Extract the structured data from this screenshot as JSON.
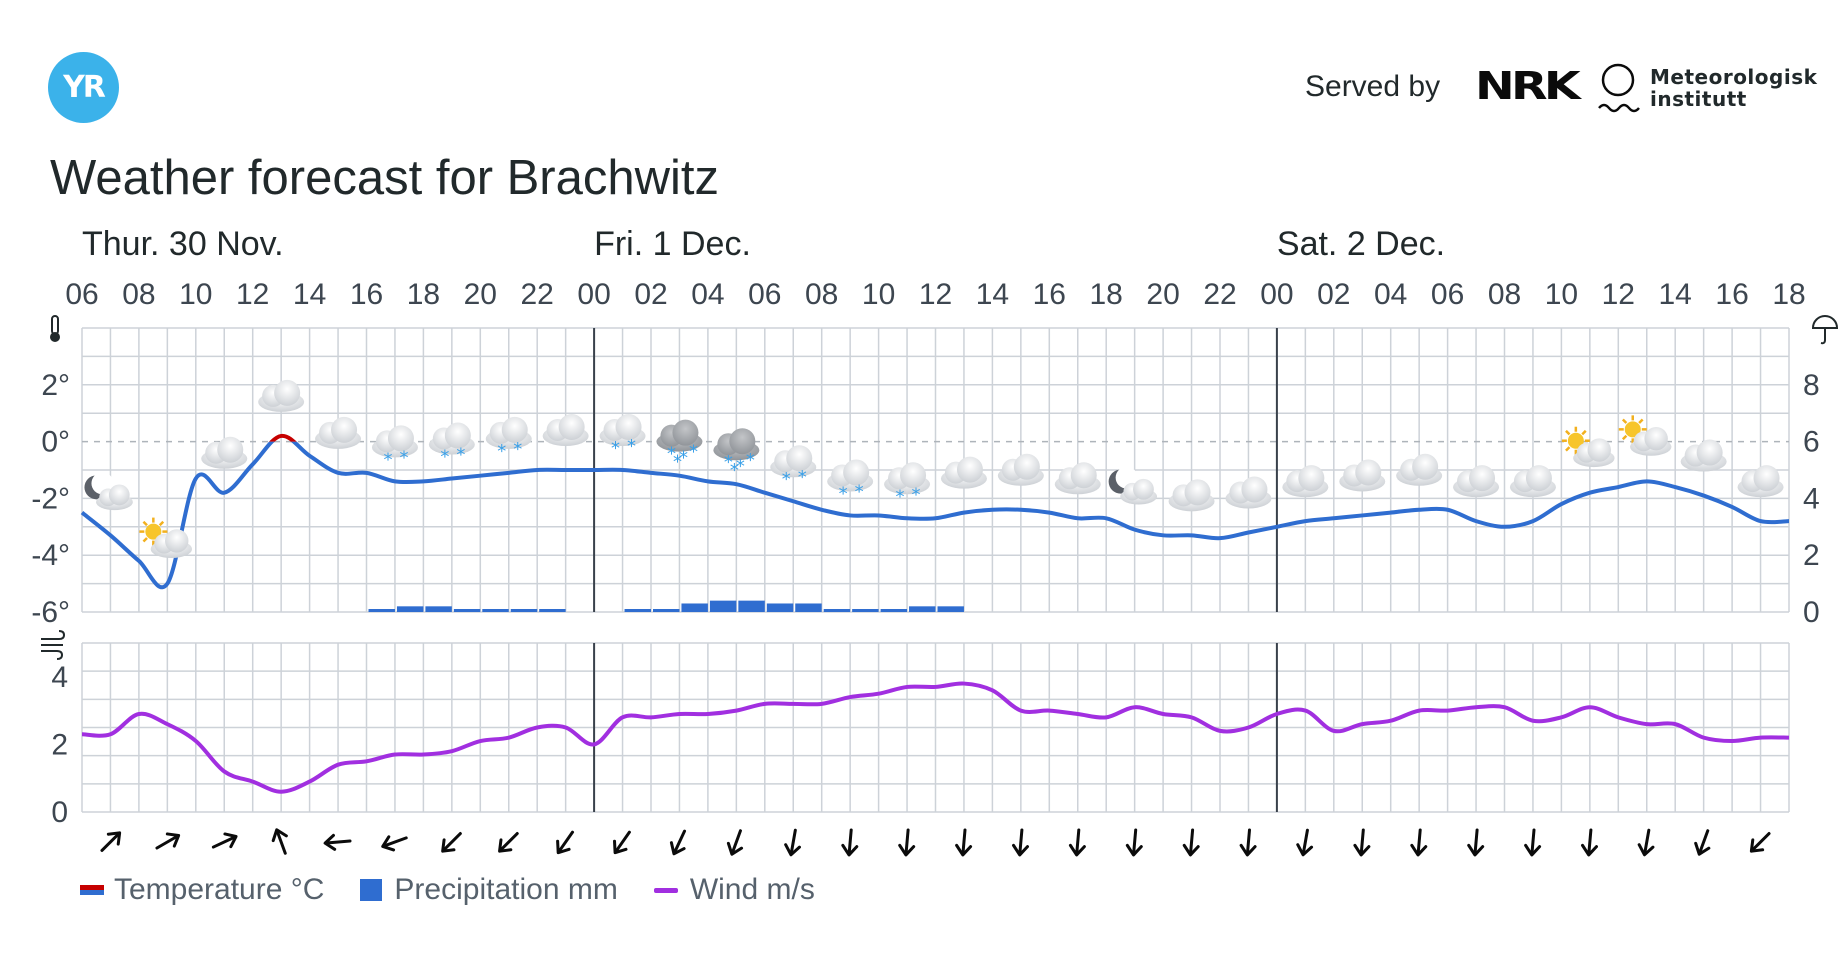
{
  "header": {
    "logo_text": "YR",
    "served_by": "Served by",
    "nrk_text": "NRK",
    "met_line1": "Meteorologisk",
    "met_line2": "institutt",
    "title": "Weather forecast for Brachwitz"
  },
  "legend": {
    "temperature": "Temperature °C",
    "precipitation": "Precipitation mm",
    "wind": "Wind m/s"
  },
  "colors": {
    "temperature_warm": "#c60000",
    "temperature_cold": "#2f6dd0",
    "precipitation": "#2f6dd0",
    "wind": "#a12fe0",
    "grid": "#cdd2d8",
    "day_separator": "#39414b",
    "logo": "#3bb2ea"
  },
  "chart_data": [
    {
      "type": "line",
      "name": "temperature-precipitation",
      "days": [
        {
          "label": "Thur. 30 Nov.",
          "start_hour_index": 0
        },
        {
          "label": "Fri. 1 Dec.",
          "start_hour_index": 18
        },
        {
          "label": "Sat. 2 Dec.",
          "start_hour_index": 42
        }
      ],
      "x_tick_labels": [
        "06",
        "08",
        "10",
        "12",
        "14",
        "16",
        "18",
        "20",
        "22",
        "00",
        "02",
        "04",
        "06",
        "08",
        "10",
        "12",
        "14",
        "16",
        "18",
        "20",
        "22",
        "00",
        "02",
        "04",
        "06",
        "08",
        "10",
        "12",
        "14",
        "16",
        "18"
      ],
      "x_hours_from_start": [
        0,
        1,
        2,
        3,
        4,
        5,
        6,
        7,
        8,
        9,
        10,
        11,
        12,
        13,
        14,
        15,
        16,
        17,
        18,
        19,
        20,
        21,
        22,
        23,
        24,
        25,
        26,
        27,
        28,
        29,
        30,
        31,
        32,
        33,
        34,
        35,
        36,
        37,
        38,
        39,
        40,
        41,
        42,
        43,
        44,
        45,
        46,
        47,
        48,
        49,
        50,
        51,
        52,
        53,
        54,
        55,
        56,
        57,
        58,
        59,
        60
      ],
      "temperature": [
        -2.5,
        -3.3,
        -4.2,
        -5.0,
        -1.3,
        -1.8,
        -0.8,
        0.2,
        -0.5,
        -1.1,
        -1.1,
        -1.4,
        -1.4,
        -1.3,
        -1.2,
        -1.1,
        -1.0,
        -1.0,
        -1.0,
        -1.0,
        -1.1,
        -1.2,
        -1.4,
        -1.5,
        -1.8,
        -2.1,
        -2.4,
        -2.6,
        -2.6,
        -2.7,
        -2.7,
        -2.5,
        -2.4,
        -2.4,
        -2.5,
        -2.7,
        -2.7,
        -3.1,
        -3.3,
        -3.3,
        -3.4,
        -3.2,
        -3.0,
        -2.8,
        -2.7,
        -2.6,
        -2.5,
        -2.4,
        -2.4,
        -2.8,
        -3.0,
        -2.8,
        -2.2,
        -1.8,
        -1.6,
        -1.4,
        -1.6,
        -1.9,
        -2.3,
        -2.8,
        -2.8
      ],
      "precipitation": [
        0,
        0,
        0,
        0,
        0,
        0,
        0,
        0,
        0,
        0,
        0.1,
        0.2,
        0.2,
        0.1,
        0.1,
        0.1,
        0.1,
        0,
        0,
        0.1,
        0.1,
        0.3,
        0.4,
        0.4,
        0.3,
        0.3,
        0.1,
        0.1,
        0.1,
        0.2,
        0.2,
        0,
        0,
        0,
        0,
        0,
        0,
        0,
        0,
        0,
        0,
        0,
        0,
        0,
        0,
        0,
        0,
        0,
        0,
        0,
        0,
        0,
        0,
        0,
        0,
        0,
        0,
        0,
        0,
        0,
        0
      ],
      "symbols": [
        "partly-cloudy-night",
        "partly-cloudy-day",
        "cloudy",
        "cloudy",
        "cloudy",
        "light-snow",
        "light-snow",
        "light-snow",
        "cloudy",
        "light-snow",
        "snow",
        "snow",
        "light-snow",
        "light-snow",
        "light-snow",
        "cloudy",
        "cloudy",
        "cloudy",
        "partly-cloudy-night",
        "cloudy",
        "cloudy",
        "cloudy",
        "cloudy",
        "cloudy",
        "cloudy",
        "cloudy",
        "partly-cloudy-day",
        "partly-cloudy-day",
        "cloudy",
        "cloudy"
      ],
      "y_left_ticks": [
        "2°",
        "0°",
        "-2°",
        "-4°",
        "-6°"
      ],
      "y_left_range": [
        -6,
        4
      ],
      "y_right_ticks": [
        "8",
        "6",
        "4",
        "2",
        "0"
      ],
      "y_right_range": [
        0,
        10
      ],
      "grid": true
    },
    {
      "type": "line",
      "name": "wind",
      "wind_speed": [
        2.3,
        2.3,
        2.9,
        2.6,
        2.1,
        1.2,
        0.9,
        0.6,
        0.9,
        1.4,
        1.5,
        1.7,
        1.7,
        1.8,
        2.1,
        2.2,
        2.5,
        2.5,
        2.0,
        2.8,
        2.8,
        2.9,
        2.9,
        3.0,
        3.2,
        3.2,
        3.2,
        3.4,
        3.5,
        3.7,
        3.7,
        3.8,
        3.6,
        3.0,
        3.0,
        2.9,
        2.8,
        3.1,
        2.9,
        2.8,
        2.4,
        2.5,
        2.9,
        3.0,
        2.4,
        2.6,
        2.7,
        3.0,
        3.0,
        3.1,
        3.1,
        2.7,
        2.8,
        3.1,
        2.8,
        2.6,
        2.6,
        2.2,
        2.1,
        2.2,
        2.2
      ],
      "wind_direction_arrows_deg": [
        45,
        60,
        65,
        -20,
        -95,
        -110,
        -135,
        -135,
        -145,
        -145,
        -155,
        -160,
        -170,
        -175,
        -175,
        -175,
        -175,
        -175,
        -175,
        -175,
        -175,
        -170,
        -175,
        -175,
        -175,
        -175,
        -175,
        -170,
        -160,
        -135
      ],
      "y_ticks": [
        "4",
        "2",
        "0"
      ],
      "y_range": [
        0,
        5
      ],
      "grid": true
    }
  ]
}
